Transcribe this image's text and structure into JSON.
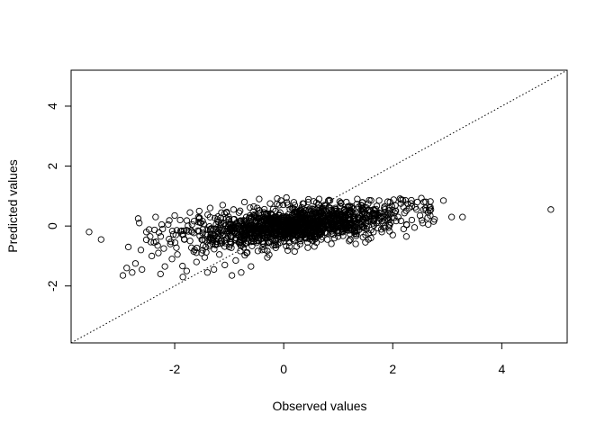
{
  "chart_data": {
    "type": "scatter",
    "title": "",
    "xlabel": "Observed values",
    "ylabel": "Predicted values",
    "xlim": [
      -3.9,
      5.2
    ],
    "ylim": [
      -3.9,
      5.2
    ],
    "xticks": [
      -2,
      0,
      2,
      4
    ],
    "yticks": [
      -2,
      0,
      2,
      4
    ],
    "xtick_labels": [
      "-2",
      "0",
      "2",
      "4"
    ],
    "ytick_labels": [
      "-2",
      "0",
      "2",
      "4"
    ],
    "reference_line": {
      "slope": 1,
      "intercept": 0,
      "style": "dotted"
    },
    "marker": "open-circle",
    "approx_point_count": 1500,
    "points": [
      [
        -3.57,
        -0.2
      ],
      [
        -3.35,
        -0.45
      ],
      [
        -2.95,
        -1.65
      ],
      [
        -2.88,
        -1.4
      ],
      [
        -2.85,
        -0.7
      ],
      [
        -2.78,
        -1.55
      ],
      [
        -2.72,
        -1.25
      ],
      [
        -2.67,
        0.25
      ],
      [
        -2.65,
        0.1
      ],
      [
        -2.62,
        -0.8
      ],
      [
        -2.6,
        -1.45
      ],
      [
        -2.52,
        -0.2
      ],
      [
        -2.45,
        -0.35
      ],
      [
        -2.42,
        -1.0
      ],
      [
        -2.38,
        -0.55
      ],
      [
        -2.35,
        0.3
      ],
      [
        -2.3,
        -0.9
      ],
      [
        -2.26,
        -1.6
      ],
      [
        -2.22,
        -0.1
      ],
      [
        -2.2,
        -0.75
      ],
      [
        -2.18,
        -1.35
      ],
      [
        -2.12,
        0.05
      ],
      [
        -2.08,
        -0.6
      ],
      [
        -2.05,
        -1.1
      ],
      [
        -2.0,
        0.35
      ],
      [
        -1.98,
        -0.3
      ],
      [
        -1.95,
        -0.95
      ],
      [
        -1.9,
        0.2
      ],
      [
        -1.85,
        -1.7
      ],
      [
        -1.82,
        -0.45
      ],
      [
        -1.78,
        -1.5
      ],
      [
        -1.72,
        0.45
      ],
      [
        -1.7,
        -0.15
      ],
      [
        -1.65,
        -0.85
      ],
      [
        -1.6,
        -1.2
      ],
      [
        -1.55,
        0.5
      ],
      [
        -1.52,
        0.1
      ],
      [
        -1.48,
        -0.65
      ],
      [
        -1.45,
        -1.05
      ],
      [
        -1.4,
        -1.55
      ],
      [
        -1.35,
        0.6
      ],
      [
        -1.3,
        -0.4
      ],
      [
        -1.28,
        -1.45
      ],
      [
        -1.22,
        -0.05
      ],
      [
        -1.18,
        -0.95
      ],
      [
        -1.12,
        0.7
      ],
      [
        -1.08,
        -1.3
      ],
      [
        -1.05,
        0.25
      ],
      [
        -1.0,
        -0.7
      ],
      [
        -0.95,
        -1.65
      ],
      [
        -0.92,
        0.55
      ],
      [
        -0.88,
        -1.15
      ],
      [
        -0.82,
        0.0
      ],
      [
        -0.78,
        -1.55
      ],
      [
        -0.72,
        0.8
      ],
      [
        -0.68,
        -0.9
      ],
      [
        -0.62,
        0.35
      ],
      [
        -0.6,
        -1.35
      ],
      [
        -0.55,
        0.65
      ],
      [
        -0.5,
        -0.5
      ],
      [
        -0.45,
        0.9
      ],
      [
        -0.4,
        -0.8
      ],
      [
        -0.35,
        0.4
      ],
      [
        -0.3,
        -1.05
      ],
      [
        -0.25,
        0.75
      ],
      [
        -0.2,
        -0.65
      ],
      [
        -0.15,
        0.5
      ],
      [
        -0.1,
        -0.45
      ],
      [
        -0.05,
        0.85
      ],
      [
        0.0,
        -0.3
      ],
      [
        0.05,
        0.95
      ],
      [
        0.1,
        -0.55
      ],
      [
        0.15,
        0.6
      ],
      [
        0.2,
        -0.85
      ],
      [
        0.25,
        0.3
      ],
      [
        0.3,
        -0.6
      ],
      [
        0.35,
        0.75
      ],
      [
        0.4,
        -0.4
      ],
      [
        0.45,
        0.8
      ],
      [
        0.5,
        -0.3
      ],
      [
        0.55,
        0.55
      ],
      [
        0.6,
        -0.55
      ],
      [
        0.65,
        0.9
      ],
      [
        0.7,
        -0.2
      ],
      [
        0.75,
        0.7
      ],
      [
        0.8,
        -0.45
      ],
      [
        0.85,
        0.85
      ],
      [
        0.9,
        -0.05
      ],
      [
        0.95,
        0.6
      ],
      [
        1.0,
        -0.35
      ],
      [
        1.05,
        0.75
      ],
      [
        1.1,
        -0.15
      ],
      [
        1.15,
        0.8
      ],
      [
        1.2,
        -0.5
      ],
      [
        1.25,
        0.65
      ],
      [
        1.3,
        -0.25
      ],
      [
        1.35,
        0.9
      ],
      [
        1.4,
        0.0
      ],
      [
        1.45,
        0.6
      ],
      [
        1.5,
        -0.3
      ],
      [
        1.55,
        0.75
      ],
      [
        1.6,
        -0.4
      ],
      [
        1.65,
        0.55
      ],
      [
        1.7,
        0.1
      ],
      [
        1.75,
        0.85
      ],
      [
        1.8,
        -0.2
      ],
      [
        1.85,
        0.65
      ],
      [
        1.9,
        0.25
      ],
      [
        1.95,
        0.8
      ],
      [
        2.0,
        -0.3
      ],
      [
        2.05,
        0.5
      ],
      [
        2.1,
        0.3
      ],
      [
        2.15,
        0.75
      ],
      [
        2.2,
        -0.1
      ],
      [
        2.25,
        -0.35
      ],
      [
        2.3,
        0.6
      ],
      [
        2.35,
        0.2
      ],
      [
        2.4,
        -0.05
      ],
      [
        2.45,
        0.8
      ],
      [
        2.5,
        0.35
      ],
      [
        2.55,
        0.1
      ],
      [
        2.6,
        0.6
      ],
      [
        2.65,
        0.45
      ],
      [
        2.7,
        0.55
      ],
      [
        2.75,
        0.15
      ],
      [
        2.93,
        0.85
      ],
      [
        3.08,
        0.3
      ],
      [
        3.28,
        0.3
      ],
      [
        4.9,
        0.55
      ]
    ]
  }
}
